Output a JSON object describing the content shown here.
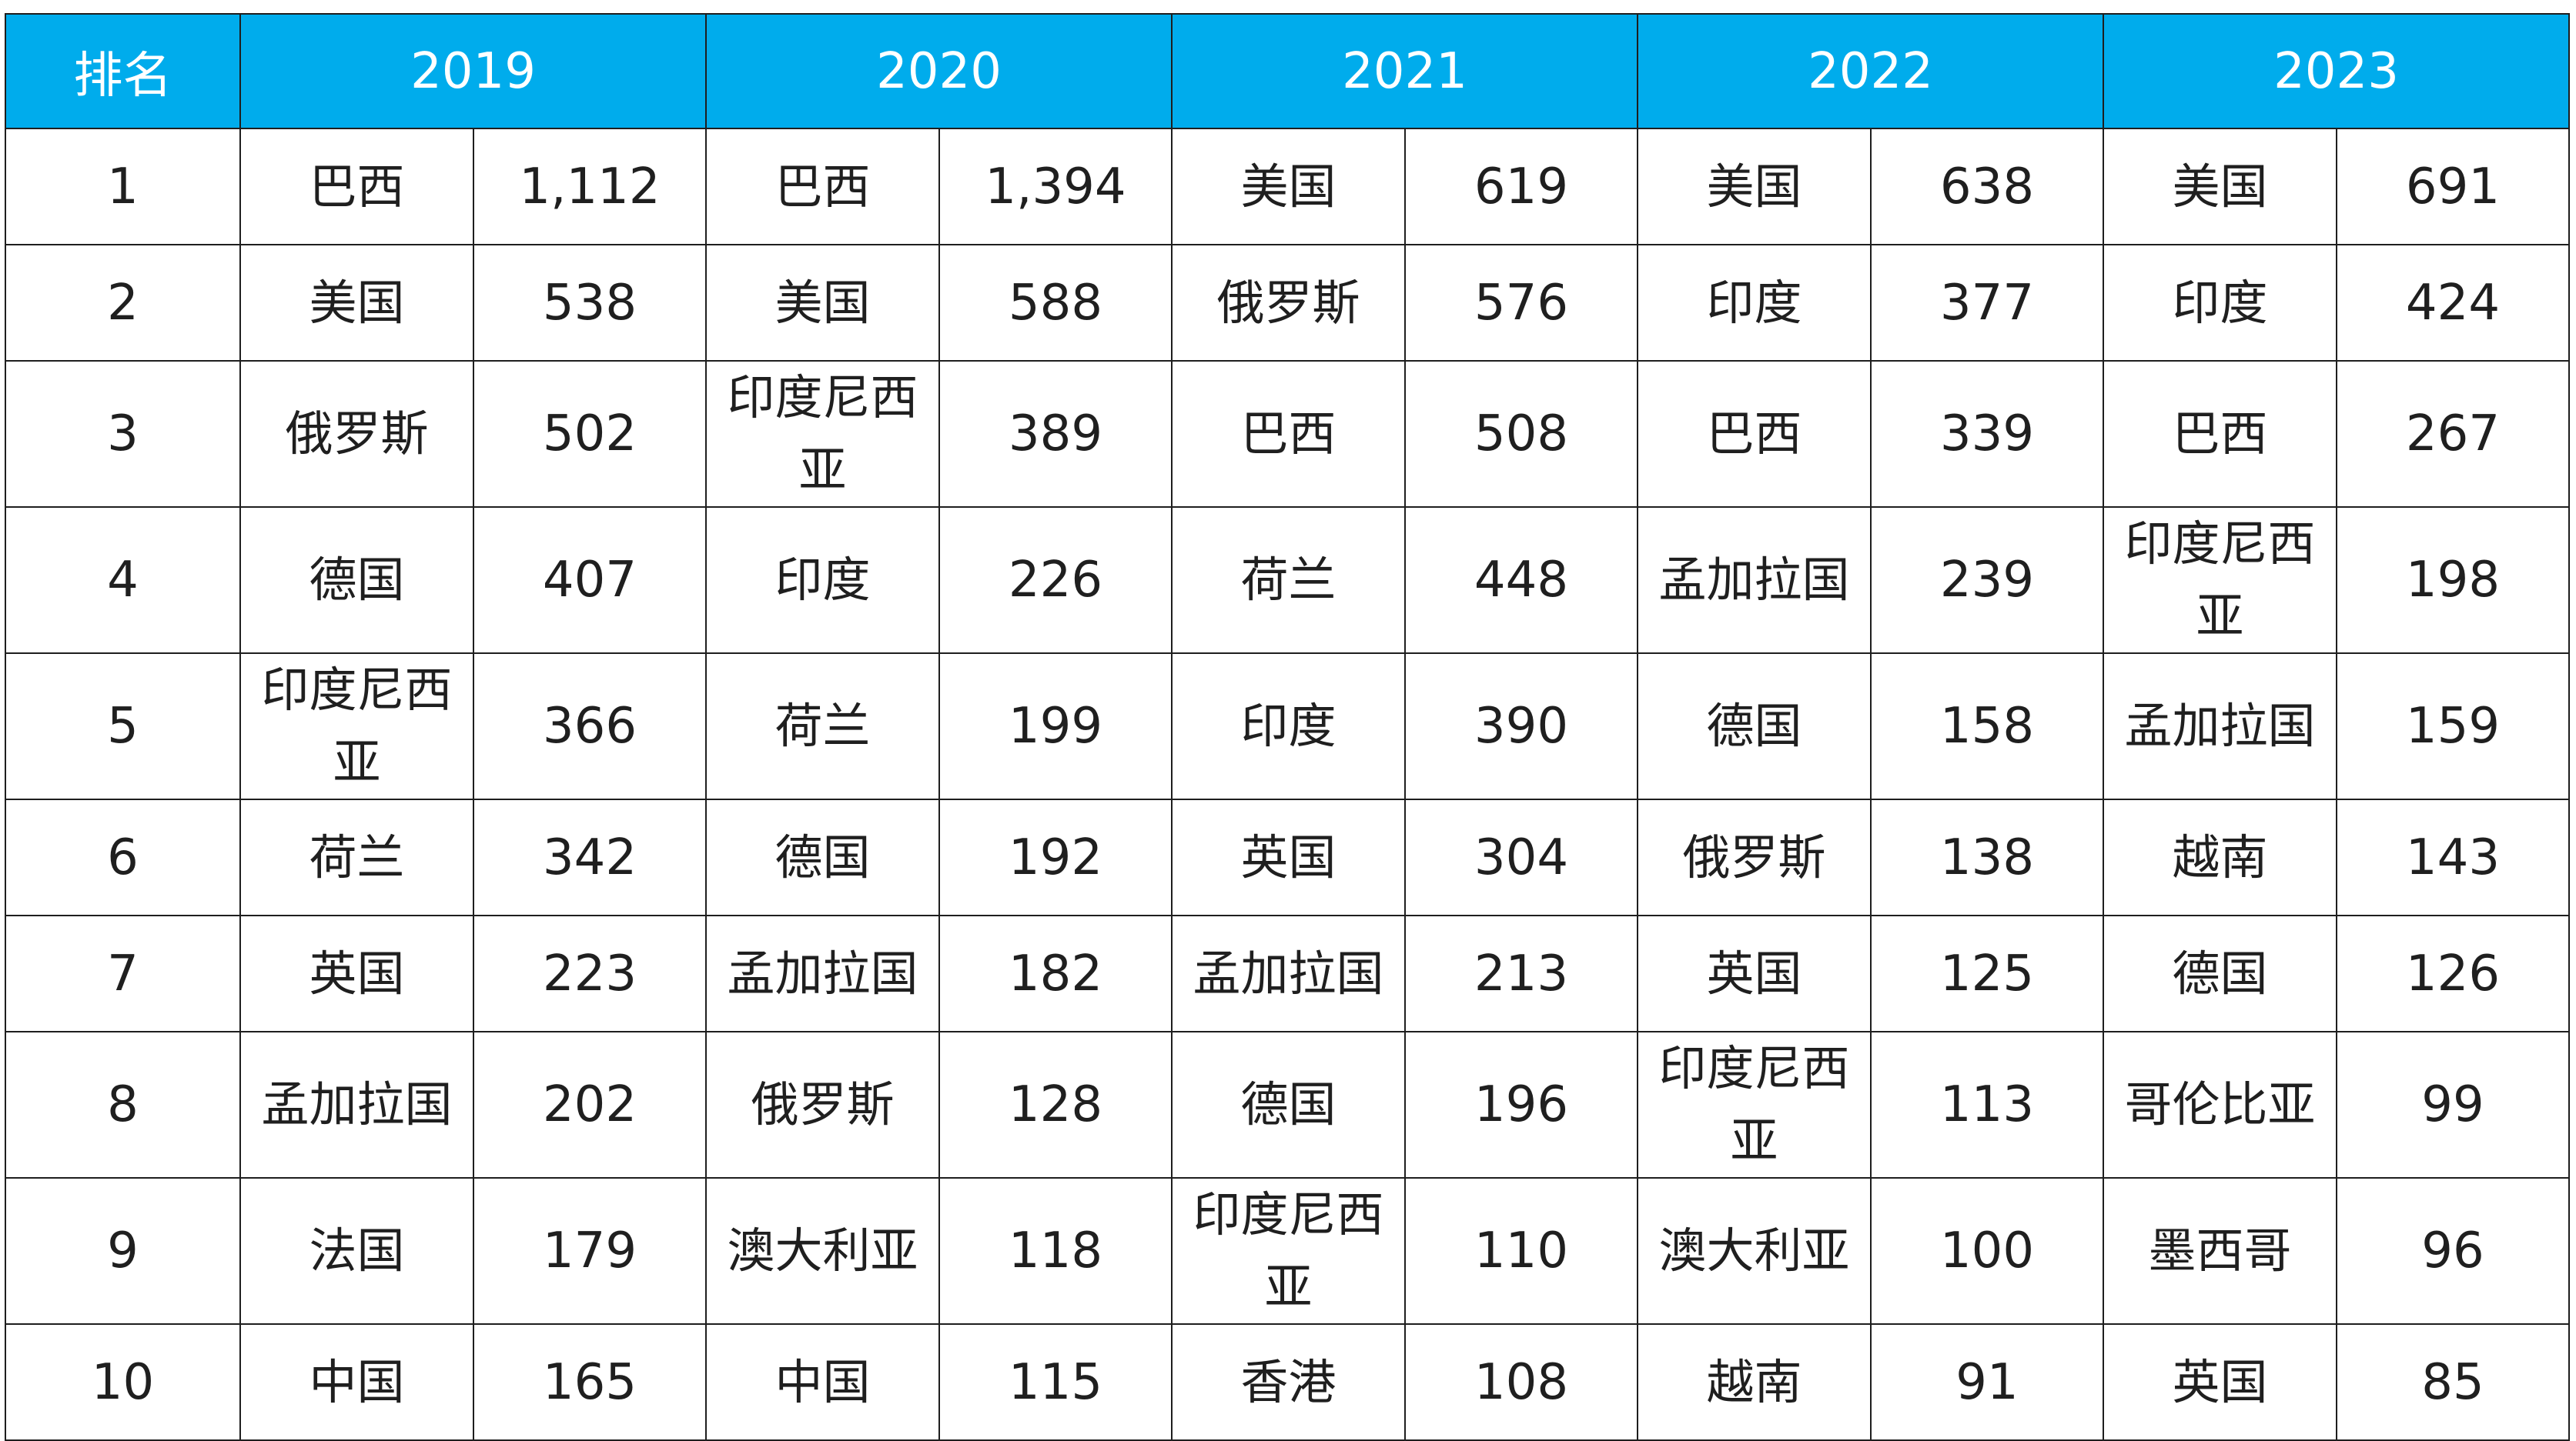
{
  "table": {
    "rank_header": "排名",
    "years": [
      "2019",
      "2020",
      "2021",
      "2022",
      "2023"
    ],
    "rows": [
      {
        "rank": "1",
        "tall": false,
        "cells": [
          [
            "巴西",
            "1,112"
          ],
          [
            "巴西",
            "1,394"
          ],
          [
            "美国",
            "619"
          ],
          [
            "美国",
            "638"
          ],
          [
            "美国",
            "691"
          ]
        ]
      },
      {
        "rank": "2",
        "tall": false,
        "cells": [
          [
            "美国",
            "538"
          ],
          [
            "美国",
            "588"
          ],
          [
            "俄罗斯",
            "576"
          ],
          [
            "印度",
            "377"
          ],
          [
            "印度",
            "424"
          ]
        ]
      },
      {
        "rank": "3",
        "tall": true,
        "cells": [
          [
            "俄罗斯",
            "502"
          ],
          [
            "印度尼西亚",
            "389"
          ],
          [
            "巴西",
            "508"
          ],
          [
            "巴西",
            "339"
          ],
          [
            "巴西",
            "267"
          ]
        ]
      },
      {
        "rank": "4",
        "tall": true,
        "cells": [
          [
            "德国",
            "407"
          ],
          [
            "印度",
            "226"
          ],
          [
            "荷兰",
            "448"
          ],
          [
            "孟加拉国",
            "239"
          ],
          [
            "印度尼西亚",
            "198"
          ]
        ]
      },
      {
        "rank": "5",
        "tall": true,
        "cells": [
          [
            "印度尼西亚",
            "366"
          ],
          [
            "荷兰",
            "199"
          ],
          [
            "印度",
            "390"
          ],
          [
            "德国",
            "158"
          ],
          [
            "孟加拉国",
            "159"
          ]
        ]
      },
      {
        "rank": "6",
        "tall": false,
        "cells": [
          [
            "荷兰",
            "342"
          ],
          [
            "德国",
            "192"
          ],
          [
            "英国",
            "304"
          ],
          [
            "俄罗斯",
            "138"
          ],
          [
            "越南",
            "143"
          ]
        ]
      },
      {
        "rank": "7",
        "tall": false,
        "cells": [
          [
            "英国",
            "223"
          ],
          [
            "孟加拉国",
            "182"
          ],
          [
            "孟加拉国",
            "213"
          ],
          [
            "英国",
            "125"
          ],
          [
            "德国",
            "126"
          ]
        ]
      },
      {
        "rank": "8",
        "tall": true,
        "cells": [
          [
            "孟加拉国",
            "202"
          ],
          [
            "俄罗斯",
            "128"
          ],
          [
            "德国",
            "196"
          ],
          [
            "印度尼西亚",
            "113"
          ],
          [
            "哥伦比亚",
            "99"
          ]
        ]
      },
      {
        "rank": "9",
        "tall": true,
        "cells": [
          [
            "法国",
            "179"
          ],
          [
            "澳大利亚",
            "118"
          ],
          [
            "印度尼西亚",
            "110"
          ],
          [
            "澳大利亚",
            "100"
          ],
          [
            "墨西哥",
            "96"
          ]
        ]
      },
      {
        "rank": "10",
        "tall": false,
        "cells": [
          [
            "中国",
            "165"
          ],
          [
            "中国",
            "115"
          ],
          [
            "香港",
            "108"
          ],
          [
            "越南",
            "91"
          ],
          [
            "英国",
            "85"
          ]
        ]
      }
    ]
  },
  "colors": {
    "header_bg": "#00acec",
    "header_text": "#ffffff",
    "border": "#1e1e1e",
    "text": "#1f1f1f"
  }
}
